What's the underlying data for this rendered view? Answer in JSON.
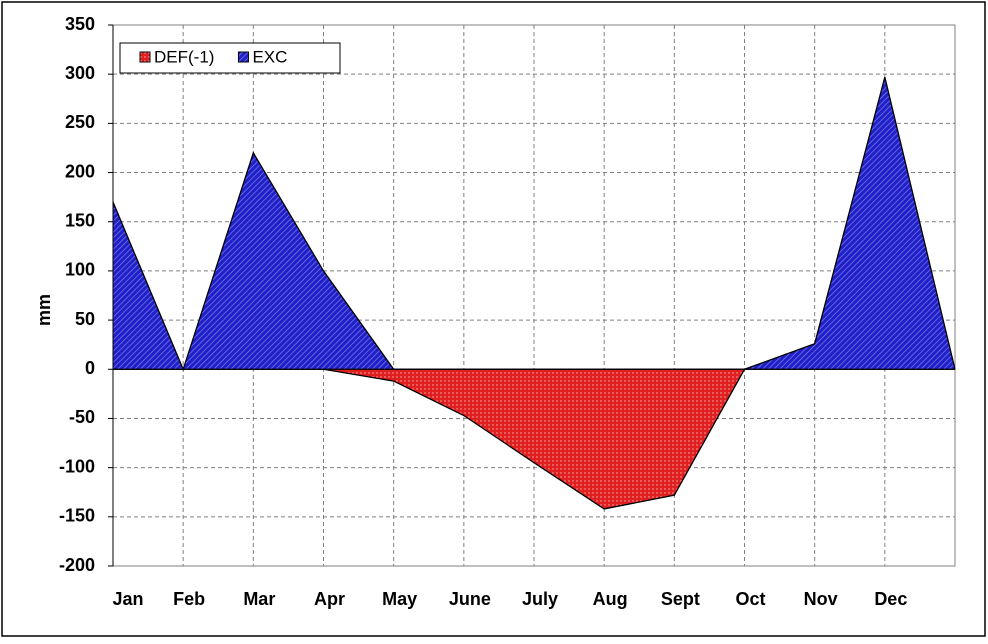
{
  "chart_data": {
    "type": "area",
    "y_label": "mm",
    "categories": [
      "Jan",
      "Feb",
      "Mar",
      "Apr",
      "May",
      "June",
      "July",
      "Aug",
      "Sept",
      "Oct",
      "Nov",
      "Dec",
      null
    ],
    "series": [
      {
        "name": "DEF(-1)",
        "color": "#e02020",
        "values": [
          0,
          0,
          0,
          0,
          -12,
          -47,
          -95,
          -142,
          -128,
          0,
          0,
          0,
          0
        ]
      },
      {
        "name": "EXC",
        "color": "#2020c8",
        "values": [
          170,
          0,
          220,
          100,
          0,
          0,
          0,
          0,
          0,
          0,
          26,
          297,
          0
        ]
      }
    ],
    "ylim": [
      -200,
      350
    ],
    "yticks": [
      -200,
      -150,
      -100,
      -50,
      0,
      50,
      100,
      150,
      200,
      250,
      300,
      350
    ],
    "grid": true,
    "legend": "top-left"
  }
}
